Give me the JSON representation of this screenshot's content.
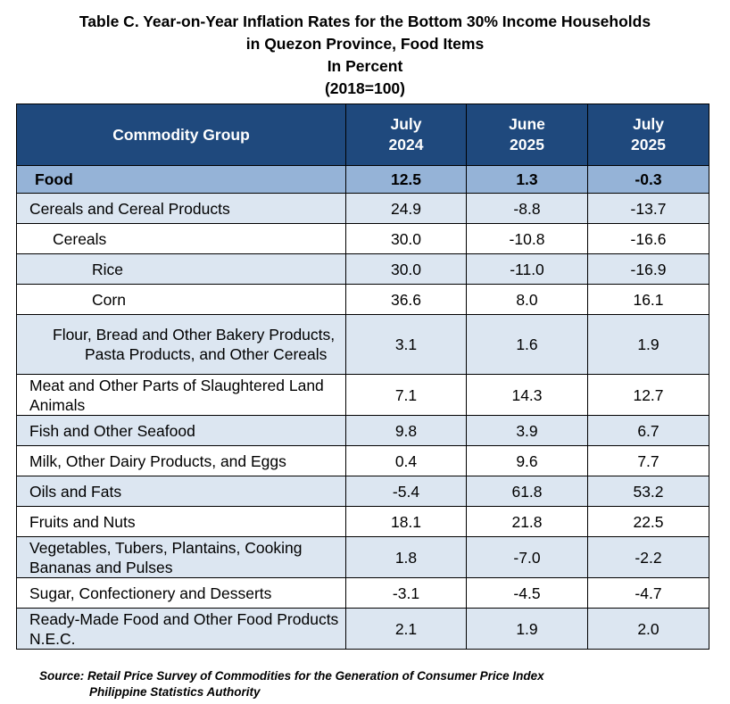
{
  "title": {
    "line1": "Table C. Year-on-Year Inflation Rates for the Bottom 30% Income Households",
    "line2": "in Quezon Province, Food Items",
    "line3": "In Percent",
    "line4": "(2018=100)"
  },
  "table": {
    "headers": {
      "commodity": "Commodity Group",
      "col1": [
        "July",
        "2024"
      ],
      "col2": [
        "June",
        "2025"
      ],
      "col3": [
        "July",
        "2025"
      ]
    },
    "rows": [
      {
        "label": "Food",
        "v1": "12.5",
        "v2": "1.3",
        "v3": "-0.3"
      },
      {
        "label": "Cereals and Cereal Products",
        "v1": "24.9",
        "v2": "-8.8",
        "v3": "-13.7"
      },
      {
        "label": "Cereals",
        "v1": "30.0",
        "v2": "-10.8",
        "v3": "-16.6"
      },
      {
        "label": "Rice",
        "v1": "30.0",
        "v2": "-11.0",
        "v3": "-16.9"
      },
      {
        "label": "Corn",
        "v1": "36.6",
        "v2": "8.0",
        "v3": "16.1"
      },
      {
        "label": "Flour, Bread and Other Bakery Products, Pasta Products, and Other Cereals",
        "v1": "3.1",
        "v2": "1.6",
        "v3": "1.9"
      },
      {
        "label": "Meat and Other Parts of Slaughtered Land Animals",
        "v1": "7.1",
        "v2": "14.3",
        "v3": "12.7"
      },
      {
        "label": "Fish and Other Seafood",
        "v1": "9.8",
        "v2": "3.9",
        "v3": "6.7"
      },
      {
        "label": "Milk, Other Dairy Products, and Eggs",
        "v1": "0.4",
        "v2": "9.6",
        "v3": "7.7"
      },
      {
        "label": "Oils and Fats",
        "v1": "-5.4",
        "v2": "61.8",
        "v3": "53.2"
      },
      {
        "label": "Fruits and Nuts",
        "v1": "18.1",
        "v2": "21.8",
        "v3": "22.5"
      },
      {
        "label": "Vegetables, Tubers, Plantains, Cooking Bananas and Pulses",
        "v1": "1.8",
        "v2": "-7.0",
        "v3": "-2.2"
      },
      {
        "label": "Sugar, Confectionery and Desserts",
        "v1": "-3.1",
        "v2": "-4.5",
        "v3": "-4.7"
      },
      {
        "label": "Ready-Made Food and Other Food Products N.E.C.",
        "v1": "2.1",
        "v2": "1.9",
        "v3": "2.0"
      }
    ]
  },
  "source": {
    "line1": "Source: Retail Price Survey of Commodities for the Generation of Consumer Price Index",
    "line2": "Philippine Statistics Authority"
  },
  "colors": {
    "header_bg": "#1f497d",
    "food_row_bg": "#95b3d7",
    "shade_row_bg": "#dce6f1"
  }
}
